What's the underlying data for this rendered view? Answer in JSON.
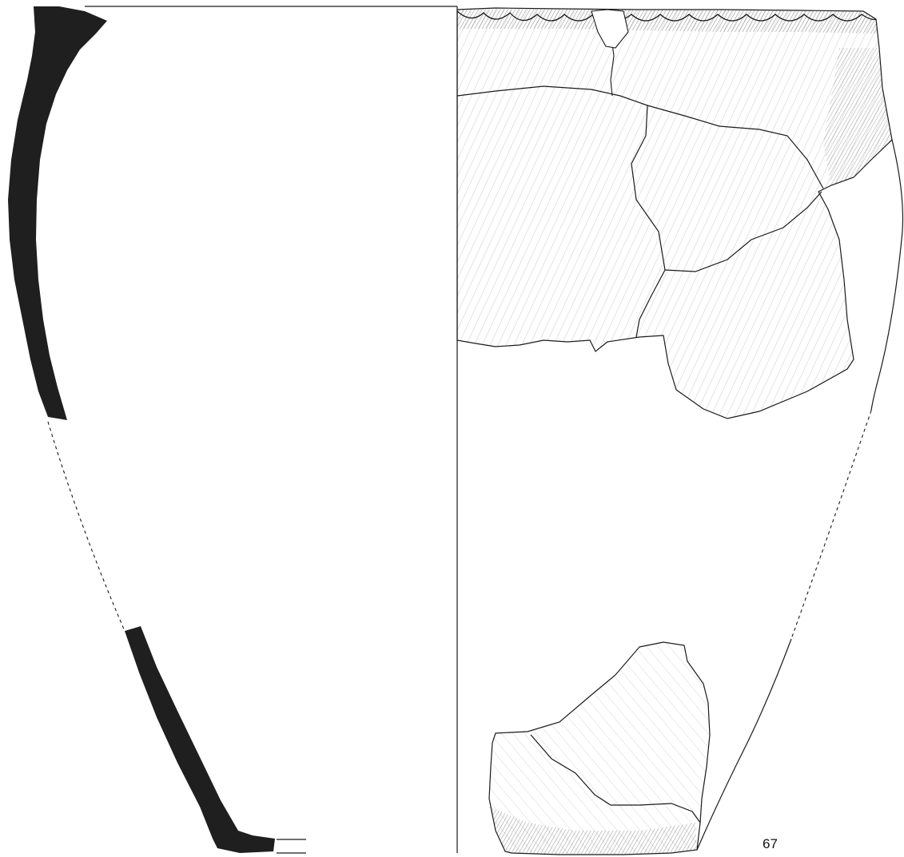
{
  "figure": {
    "catalog_number": "67"
  },
  "style": {
    "ink": "#1a1a1a",
    "section_fill": "#1f1f1f",
    "background": "#ffffff"
  }
}
